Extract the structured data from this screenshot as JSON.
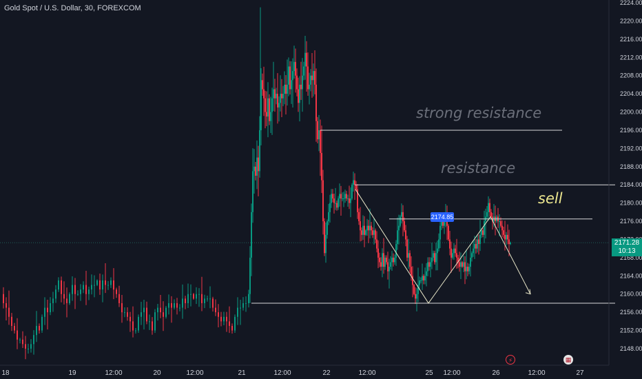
{
  "symbol": {
    "title": "Gold Spot / U.S. Dollar, 30, FOREXCOM"
  },
  "price_scale": {
    "ticks": [
      "2224.00",
      "2220.00",
      "2216.00",
      "2212.00",
      "2208.00",
      "2204.00",
      "2200.00",
      "2196.00",
      "2192.00",
      "2188.00",
      "2184.00",
      "2180.00",
      "2176.00",
      "2172.00",
      "2168.00",
      "2164.00",
      "2160.00",
      "2156.00",
      "2152.00",
      "2148.00"
    ],
    "last_price": "2171.28",
    "countdown": "10:13"
  },
  "time_scale": {
    "labels": [
      "18",
      "19",
      "12:00",
      "20",
      "12:00",
      "21",
      "12:00",
      "22",
      "12:00",
      "25",
      "12:00",
      "26",
      "12:00",
      "27"
    ]
  },
  "annotations": {
    "strong_resistance": "strong resistance",
    "resistance": "resistance",
    "sell": "sell",
    "price_tag": "2174.85"
  },
  "events": {
    "flash_icon": "lightning-icon",
    "flag_icon": "us-flag-icon"
  },
  "colors": {
    "background": "#131722",
    "up": "#089981",
    "down": "#f23645",
    "text": "#d1d4dc",
    "lines": "#d9d9d9",
    "sell_label": "#eee890"
  },
  "chart_data": {
    "type": "candlestick",
    "title": "Gold Spot / U.S. Dollar, 30, FOREXCOM",
    "ylim": [
      2146,
      2225
    ],
    "x_labels": [
      "18",
      "19",
      "12:00",
      "20",
      "12:00",
      "21",
      "12:00",
      "22",
      "12:00",
      "25",
      "12:00",
      "26",
      "12:00",
      "27"
    ],
    "close_path": [
      [
        0,
        2160
      ],
      [
        4,
        2158
      ],
      [
        8,
        2157
      ],
      [
        12,
        2155
      ],
      [
        16,
        2153
      ],
      [
        20,
        2152
      ],
      [
        24,
        2150
      ],
      [
        28,
        2150
      ],
      [
        32,
        2149
      ],
      [
        36,
        2148
      ],
      [
        40,
        2148
      ],
      [
        44,
        2149
      ],
      [
        48,
        2151
      ],
      [
        52,
        2153
      ],
      [
        56,
        2152
      ],
      [
        60,
        2155
      ],
      [
        64,
        2157
      ],
      [
        68,
        2156
      ],
      [
        72,
        2158
      ],
      [
        76,
        2159
      ],
      [
        80,
        2161
      ],
      [
        84,
        2163
      ],
      [
        88,
        2160
      ],
      [
        92,
        2159
      ],
      [
        96,
        2158
      ],
      [
        100,
        2160
      ],
      [
        104,
        2162
      ],
      [
        108,
        2160
      ],
      [
        112,
        2160
      ],
      [
        116,
        2161
      ],
      [
        120,
        2162
      ],
      [
        124,
        2160
      ],
      [
        128,
        2161
      ],
      [
        132,
        2162
      ],
      [
        136,
        2162
      ],
      [
        140,
        2163
      ],
      [
        144,
        2161
      ],
      [
        148,
        2163
      ],
      [
        152,
        2162
      ],
      [
        156,
        2162
      ],
      [
        160,
        2163
      ],
      [
        164,
        2161
      ],
      [
        168,
        2160
      ],
      [
        172,
        2158
      ],
      [
        176,
        2156
      ],
      [
        180,
        2156
      ],
      [
        184,
        2155
      ],
      [
        188,
        2154
      ],
      [
        192,
        2152
      ],
      [
        196,
        2152
      ],
      [
        200,
        2155
      ],
      [
        204,
        2156
      ],
      [
        208,
        2157
      ],
      [
        212,
        2154
      ],
      [
        216,
        2154
      ],
      [
        220,
        2152
      ],
      [
        224,
        2156
      ],
      [
        228,
        2157
      ],
      [
        232,
        2156
      ],
      [
        236,
        2155
      ],
      [
        240,
        2157
      ],
      [
        244,
        2158
      ],
      [
        248,
        2157
      ],
      [
        252,
        2158
      ],
      [
        256,
        2157
      ],
      [
        260,
        2157
      ],
      [
        264,
        2159
      ],
      [
        268,
        2158
      ],
      [
        272,
        2160
      ],
      [
        276,
        2160
      ],
      [
        280,
        2159
      ],
      [
        284,
        2160
      ],
      [
        288,
        2160
      ],
      [
        292,
        2158
      ],
      [
        296,
        2159
      ],
      [
        300,
        2159
      ],
      [
        304,
        2159
      ],
      [
        308,
        2157
      ],
      [
        312,
        2156
      ],
      [
        316,
        2155
      ],
      [
        320,
        2154
      ],
      [
        324,
        2155
      ],
      [
        328,
        2154
      ],
      [
        332,
        2153
      ],
      [
        336,
        2152
      ],
      [
        340,
        2155
      ],
      [
        344,
        2157
      ],
      [
        348,
        2157
      ],
      [
        352,
        2158
      ],
      [
        356,
        2158
      ],
      [
        360,
        2160
      ],
      [
        362,
        2168
      ],
      [
        364,
        2178
      ],
      [
        366,
        2187
      ],
      [
        368,
        2188
      ],
      [
        370,
        2186
      ],
      [
        372,
        2190
      ],
      [
        374,
        2187
      ],
      [
        376,
        2196
      ],
      [
        378,
        2207
      ],
      [
        380,
        2205
      ],
      [
        382,
        2203
      ],
      [
        384,
        2200
      ],
      [
        386,
        2199
      ],
      [
        388,
        2203
      ],
      [
        390,
        2198
      ],
      [
        392,
        2200
      ],
      [
        394,
        2203
      ],
      [
        396,
        2205
      ],
      [
        398,
        2203
      ],
      [
        400,
        2204
      ],
      [
        402,
        2201
      ],
      [
        404,
        2202
      ],
      [
        406,
        2204
      ],
      [
        408,
        2203
      ],
      [
        410,
        2204
      ],
      [
        412,
        2206
      ],
      [
        414,
        2204
      ],
      [
        416,
        2206
      ],
      [
        418,
        2210
      ],
      [
        420,
        2205
      ],
      [
        422,
        2207
      ],
      [
        424,
        2209
      ],
      [
        426,
        2211
      ],
      [
        428,
        2208
      ],
      [
        430,
        2205
      ],
      [
        432,
        2202
      ],
      [
        434,
        2206
      ],
      [
        436,
        2205
      ],
      [
        438,
        2208
      ],
      [
        440,
        2210
      ],
      [
        442,
        2213
      ],
      [
        444,
        2210
      ],
      [
        446,
        2205
      ],
      [
        448,
        2206
      ],
      [
        450,
        2208
      ],
      [
        452,
        2207
      ],
      [
        454,
        2209
      ],
      [
        456,
        2206
      ],
      [
        458,
        2198
      ],
      [
        460,
        2194
      ],
      [
        462,
        2196
      ],
      [
        464,
        2191
      ],
      [
        466,
        2185
      ],
      [
        468,
        2176
      ],
      [
        470,
        2169
      ],
      [
        472,
        2173
      ],
      [
        474,
        2176
      ],
      [
        476,
        2178
      ],
      [
        478,
        2180
      ],
      [
        480,
        2182
      ],
      [
        482,
        2181
      ],
      [
        484,
        2180
      ],
      [
        486,
        2180
      ],
      [
        488,
        2179
      ],
      [
        490,
        2181
      ],
      [
        492,
        2182
      ],
      [
        494,
        2181
      ],
      [
        496,
        2181
      ],
      [
        498,
        2181
      ],
      [
        500,
        2182
      ],
      [
        502,
        2181
      ],
      [
        504,
        2181
      ],
      [
        506,
        2180
      ],
      [
        508,
        2181
      ],
      [
        510,
        2184
      ],
      [
        512,
        2185
      ],
      [
        514,
        2184
      ],
      [
        516,
        2183
      ],
      [
        518,
        2178
      ],
      [
        520,
        2176
      ],
      [
        522,
        2174
      ],
      [
        524,
        2173
      ],
      [
        526,
        2175
      ],
      [
        528,
        2173
      ],
      [
        530,
        2174
      ],
      [
        532,
        2175
      ],
      [
        534,
        2174
      ],
      [
        536,
        2175
      ],
      [
        538,
        2174
      ],
      [
        540,
        2173
      ],
      [
        542,
        2174
      ],
      [
        544,
        2172
      ],
      [
        546,
        2170
      ],
      [
        548,
        2168
      ],
      [
        550,
        2167
      ],
      [
        552,
        2166
      ],
      [
        554,
        2169
      ],
      [
        556,
        2166
      ],
      [
        558,
        2168
      ],
      [
        560,
        2167
      ],
      [
        562,
        2165
      ],
      [
        564,
        2166
      ],
      [
        566,
        2167
      ],
      [
        568,
        2168
      ],
      [
        570,
        2167
      ],
      [
        572,
        2168
      ],
      [
        574,
        2171
      ],
      [
        576,
        2174
      ],
      [
        578,
        2175
      ],
      [
        580,
        2177
      ],
      [
        582,
        2178
      ],
      [
        584,
        2176
      ],
      [
        586,
        2174
      ],
      [
        588,
        2172
      ],
      [
        590,
        2168
      ],
      [
        592,
        2169
      ],
      [
        594,
        2166
      ],
      [
        596,
        2164
      ],
      [
        598,
        2162
      ],
      [
        600,
        2160
      ],
      [
        602,
        2159
      ],
      [
        604,
        2160
      ],
      [
        606,
        2162
      ],
      [
        608,
        2163
      ],
      [
        610,
        2163
      ],
      [
        612,
        2164
      ],
      [
        614,
        2163
      ],
      [
        616,
        2164
      ],
      [
        618,
        2165
      ],
      [
        620,
        2167
      ],
      [
        622,
        2166
      ],
      [
        624,
        2167
      ],
      [
        626,
        2168
      ],
      [
        628,
        2169
      ],
      [
        630,
        2167
      ],
      [
        632,
        2169
      ],
      [
        634,
        2170
      ],
      [
        636,
        2172
      ],
      [
        638,
        2175
      ],
      [
        640,
        2176
      ],
      [
        642,
        2175
      ],
      [
        644,
        2176
      ],
      [
        646,
        2177
      ],
      [
        648,
        2175
      ],
      [
        650,
        2172
      ],
      [
        652,
        2170
      ],
      [
        654,
        2168
      ],
      [
        656,
        2169
      ],
      [
        658,
        2170
      ],
      [
        660,
        2169
      ],
      [
        662,
        2168
      ],
      [
        664,
        2167
      ],
      [
        666,
        2166
      ],
      [
        668,
        2167
      ],
      [
        670,
        2166
      ],
      [
        672,
        2167
      ],
      [
        674,
        2165
      ],
      [
        676,
        2166
      ],
      [
        678,
        2165
      ],
      [
        680,
        2166
      ],
      [
        682,
        2168
      ],
      [
        684,
        2169
      ],
      [
        686,
        2170
      ],
      [
        688,
        2171
      ],
      [
        690,
        2170
      ],
      [
        692,
        2172
      ],
      [
        694,
        2171
      ],
      [
        696,
        2173
      ],
      [
        698,
        2174
      ],
      [
        700,
        2173
      ],
      [
        702,
        2176
      ],
      [
        704,
        2177
      ],
      [
        706,
        2178
      ],
      [
        708,
        2180
      ],
      [
        710,
        2178
      ],
      [
        712,
        2177
      ],
      [
        714,
        2176
      ],
      [
        716,
        2177
      ],
      [
        718,
        2176
      ],
      [
        720,
        2177
      ],
      [
        722,
        2176
      ],
      [
        724,
        2176
      ],
      [
        726,
        2175
      ],
      [
        728,
        2174
      ],
      [
        730,
        2173
      ],
      [
        732,
        2172
      ],
      [
        734,
        2173
      ],
      [
        736,
        2172
      ],
      [
        738,
        2171
      ],
      [
        740,
        2171.28
      ]
    ],
    "horizontal_levels": [
      {
        "price": 2196,
        "x_start": 465,
        "x_end": 816
      },
      {
        "price": 2184,
        "x_start": 515,
        "x_end": 893
      },
      {
        "price": 2176.5,
        "x_start": 565,
        "x_end": 860
      },
      {
        "price": 2158,
        "x_start": 365,
        "x_end": 893
      }
    ],
    "pattern_path": [
      [
        516,
        2183
      ],
      [
        622,
        2158
      ],
      [
        712,
        2177
      ],
      [
        770,
        2160
      ]
    ]
  }
}
